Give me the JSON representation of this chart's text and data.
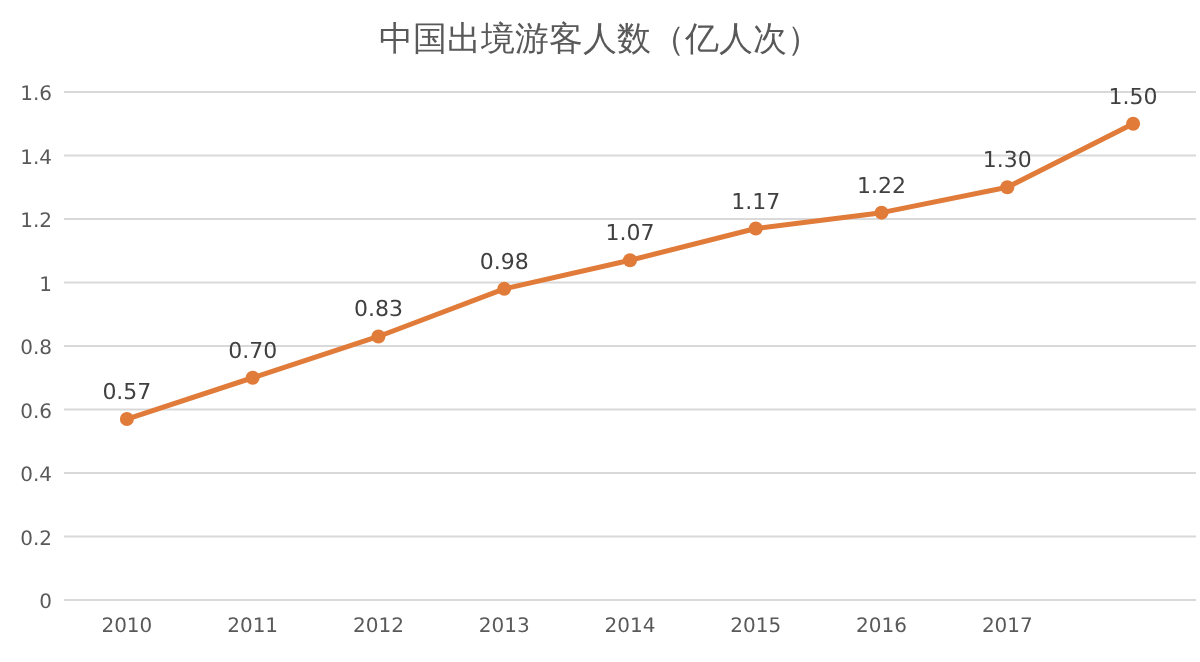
{
  "chart_data": {
    "type": "line",
    "title": "中国出境游客人数（亿人次）",
    "categories": [
      "2010",
      "2011",
      "2012",
      "2013",
      "2014",
      "2015",
      "2016",
      "2017",
      null
    ],
    "series": [
      {
        "color": "#e07b39",
        "values": [
          0.57,
          0.7,
          0.83,
          0.98,
          1.07,
          1.17,
          1.22,
          1.3,
          1.5
        ],
        "value_labels": [
          "0.57",
          "0.70",
          "0.83",
          "0.98",
          "1.07",
          "1.17",
          "1.22",
          "1.30",
          "1.50"
        ]
      }
    ],
    "ylim": [
      0,
      1.6
    ],
    "yticks": [
      0,
      0.2,
      0.4,
      0.6,
      0.8,
      1,
      1.2,
      1.4,
      1.6
    ],
    "grid": "y",
    "marker": "circle",
    "line_style": "solid"
  }
}
